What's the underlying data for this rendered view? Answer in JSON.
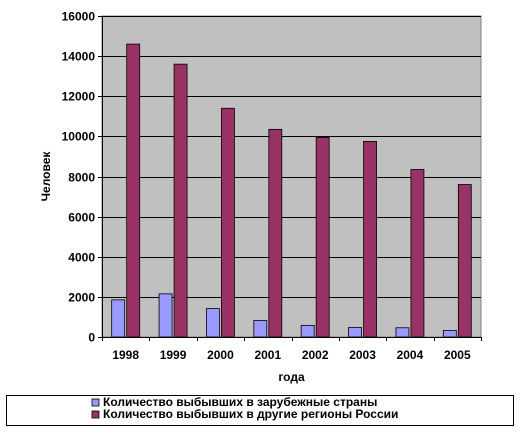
{
  "chart_data": {
    "type": "bar",
    "categories": [
      "1998",
      "1999",
      "2000",
      "2001",
      "2002",
      "2003",
      "2004",
      "2005"
    ],
    "series": [
      {
        "name": "Количество выбывших в зарубежные страны",
        "values": [
          1850,
          2150,
          1420,
          820,
          580,
          480,
          460,
          330
        ],
        "color": "#9999ff"
      },
      {
        "name": "Количество выбывших в другие регионы России",
        "values": [
          14600,
          13600,
          11400,
          10350,
          9950,
          9750,
          8350,
          7600
        ],
        "color": "#993366"
      }
    ],
    "xlabel": "года",
    "ylabel": "Человек",
    "ylim": [
      0,
      16000
    ],
    "yticks": [
      0,
      2000,
      4000,
      6000,
      8000,
      10000,
      12000,
      14000,
      16000
    ],
    "grid": true,
    "legend_position": "bottom",
    "plot_background": "#c0c0c0"
  }
}
